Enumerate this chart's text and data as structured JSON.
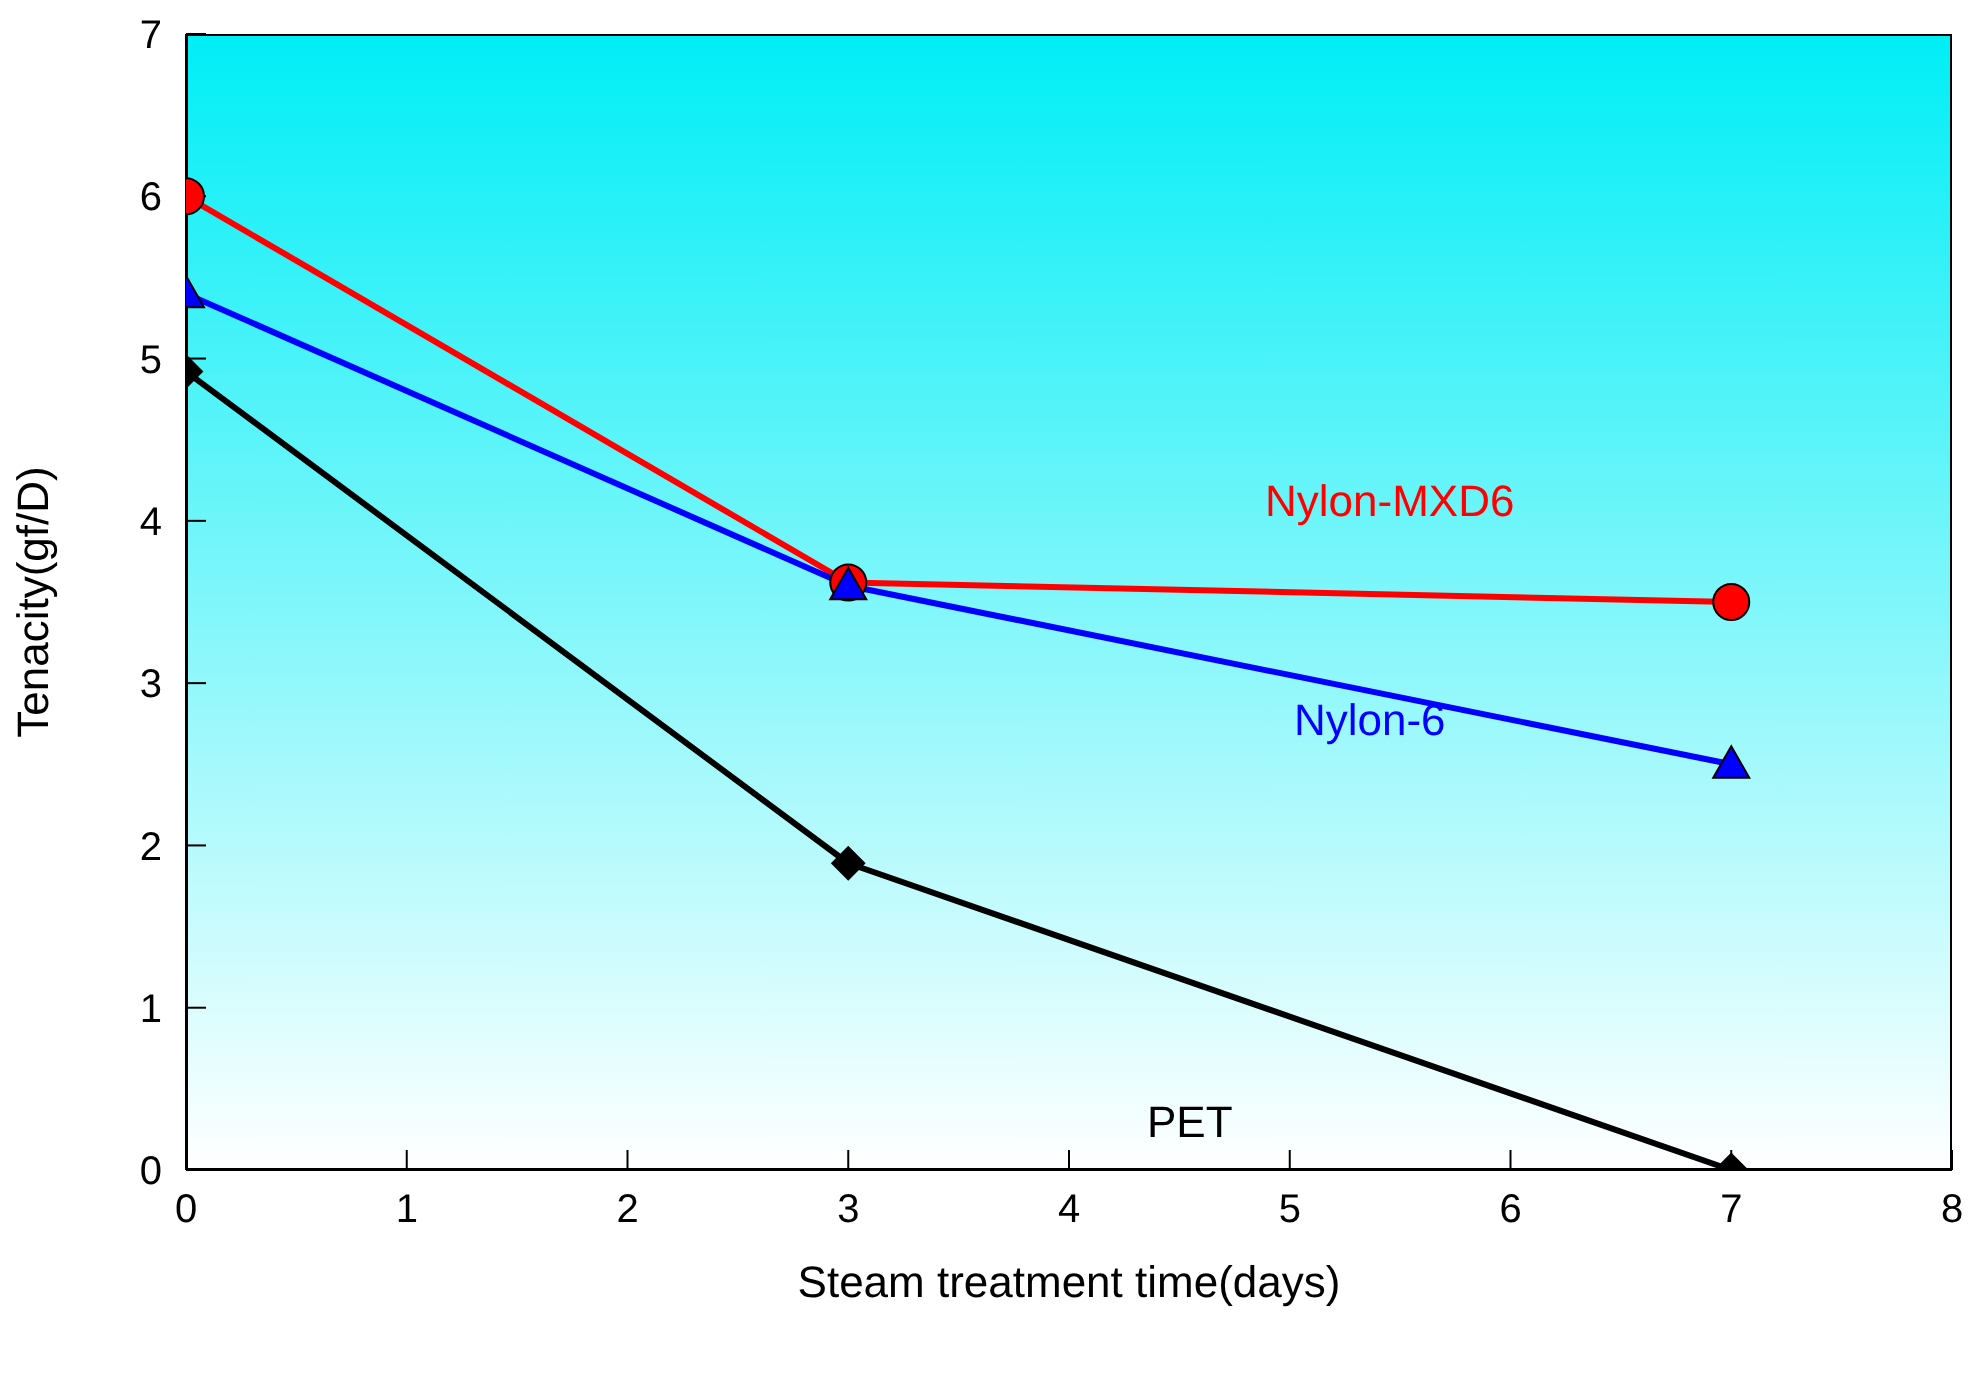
{
  "chart_data": {
    "type": "line",
    "xlabel": "Steam treatment time(days)",
    "ylabel": "Tenacity(gf/D)",
    "x": [
      0,
      3,
      7
    ],
    "series": [
      {
        "name": "Nylon-MXD6",
        "color": "#ff0000",
        "marker": "circle",
        "values": [
          6,
          3.62,
          3.5
        ]
      },
      {
        "name": "Nylon-6",
        "color": "#0000ff",
        "marker": "triangle",
        "values": [
          5.4,
          3.6,
          2.5
        ]
      },
      {
        "name": "PET",
        "color": "#000000",
        "marker": "diamond",
        "values": [
          4.92,
          1.89,
          0
        ]
      }
    ],
    "xlim": [
      0,
      8
    ],
    "xticks": [
      0,
      1,
      2,
      3,
      4,
      5,
      6,
      7,
      8
    ],
    "ylim": [
      0,
      7
    ],
    "yticks": [
      0,
      1,
      2,
      3,
      4,
      5,
      6,
      7
    ],
    "grid": false,
    "legend": false,
    "line_style": "solid"
  }
}
